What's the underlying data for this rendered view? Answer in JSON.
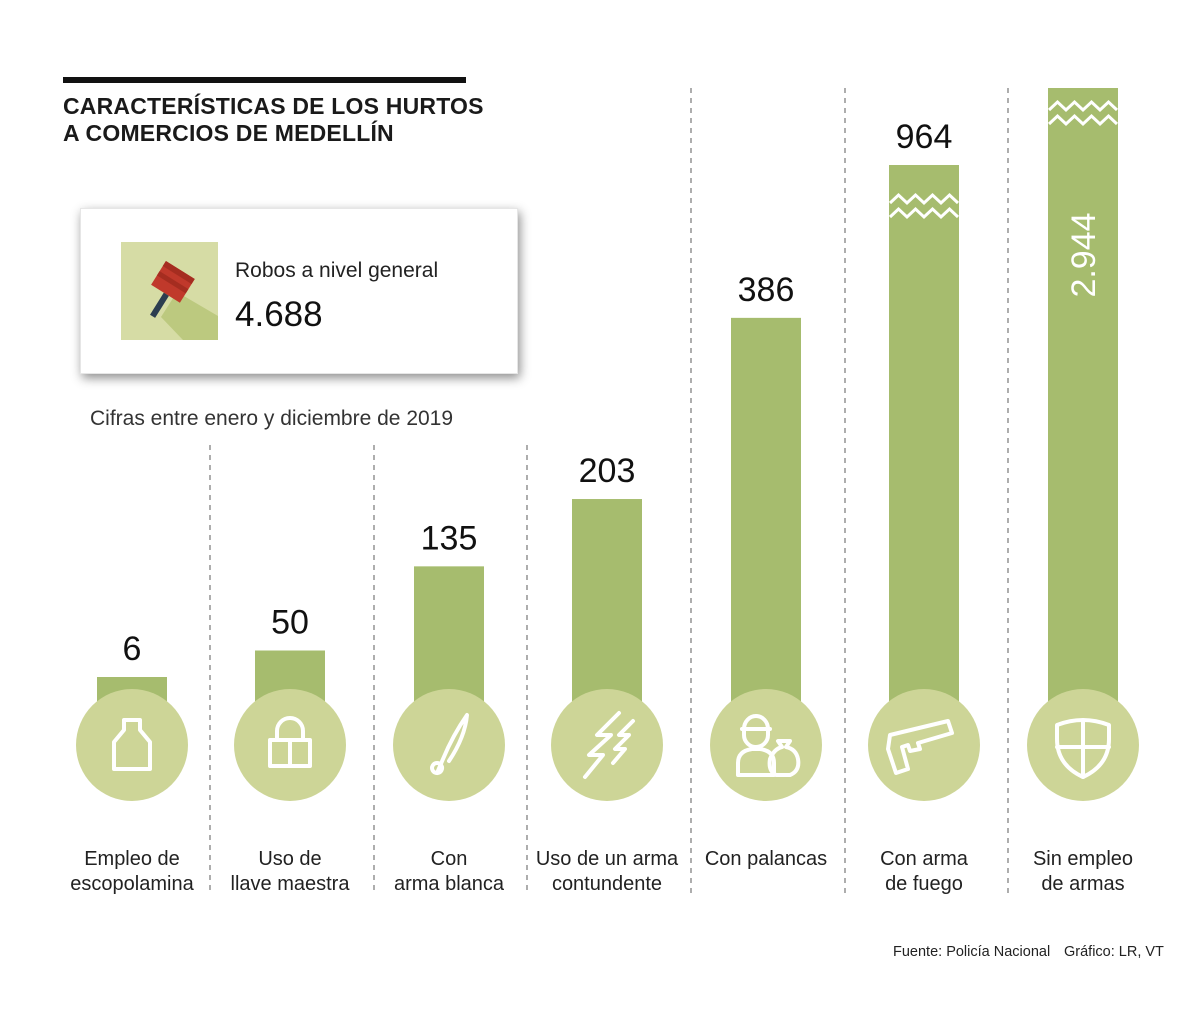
{
  "header": {
    "title_lines": [
      "CARACTERÍSTICAS DE LOS HURTOS",
      "A COMERCIOS DE MEDELLÍN"
    ]
  },
  "summary": {
    "label": "Robos a nivel general",
    "value": "4.688",
    "icon": "cleaver-knife-icon"
  },
  "note": "Cifras entre enero y diciembre de 2019",
  "colors": {
    "bar": "#a6bc6e",
    "circle": "#cdd597",
    "icon_bg": "#d6dca5",
    "icon_stroke": "#ffffff",
    "divider": "#777777"
  },
  "chart_data": {
    "type": "bar",
    "title": "CARACTERÍSTICAS DE LOS HURTOS A COMERCIOS DE MEDELLÍN",
    "categories": [
      "Empleo de escopolamina",
      "Uso de llave maestra",
      "Con arma blanca",
      "Uso de un arma contundente",
      "Con palancas",
      "Con arma de fuego",
      "Sin empleo de armas"
    ],
    "category_label_lines": [
      [
        "Empleo de",
        "escopolamina"
      ],
      [
        "Uso de",
        "llave maestra"
      ],
      [
        "Con",
        "arma blanca"
      ],
      [
        "Uso de un arma",
        "contundente"
      ],
      [
        "Con palancas"
      ],
      [
        "Con arma",
        "de fuego"
      ],
      [
        "Sin empleo",
        "de armas"
      ]
    ],
    "values": [
      6,
      50,
      135,
      203,
      386,
      964,
      2944
    ],
    "value_labels": [
      "6",
      "50",
      "135",
      "203",
      "386",
      "964",
      "2.944"
    ],
    "broken_axis": [
      false,
      false,
      false,
      false,
      false,
      true,
      true
    ],
    "icons": [
      "bottle-icon",
      "padlock-icon",
      "knife-icon",
      "lightning-icon",
      "thief-icon",
      "gun-icon",
      "shield-icon"
    ],
    "xlabel": "",
    "ylabel": "",
    "grid": false,
    "legend": "none"
  },
  "footer": {
    "source": "Fuente: Policía Nacional",
    "credit": "Gráfico: LR, VT"
  }
}
